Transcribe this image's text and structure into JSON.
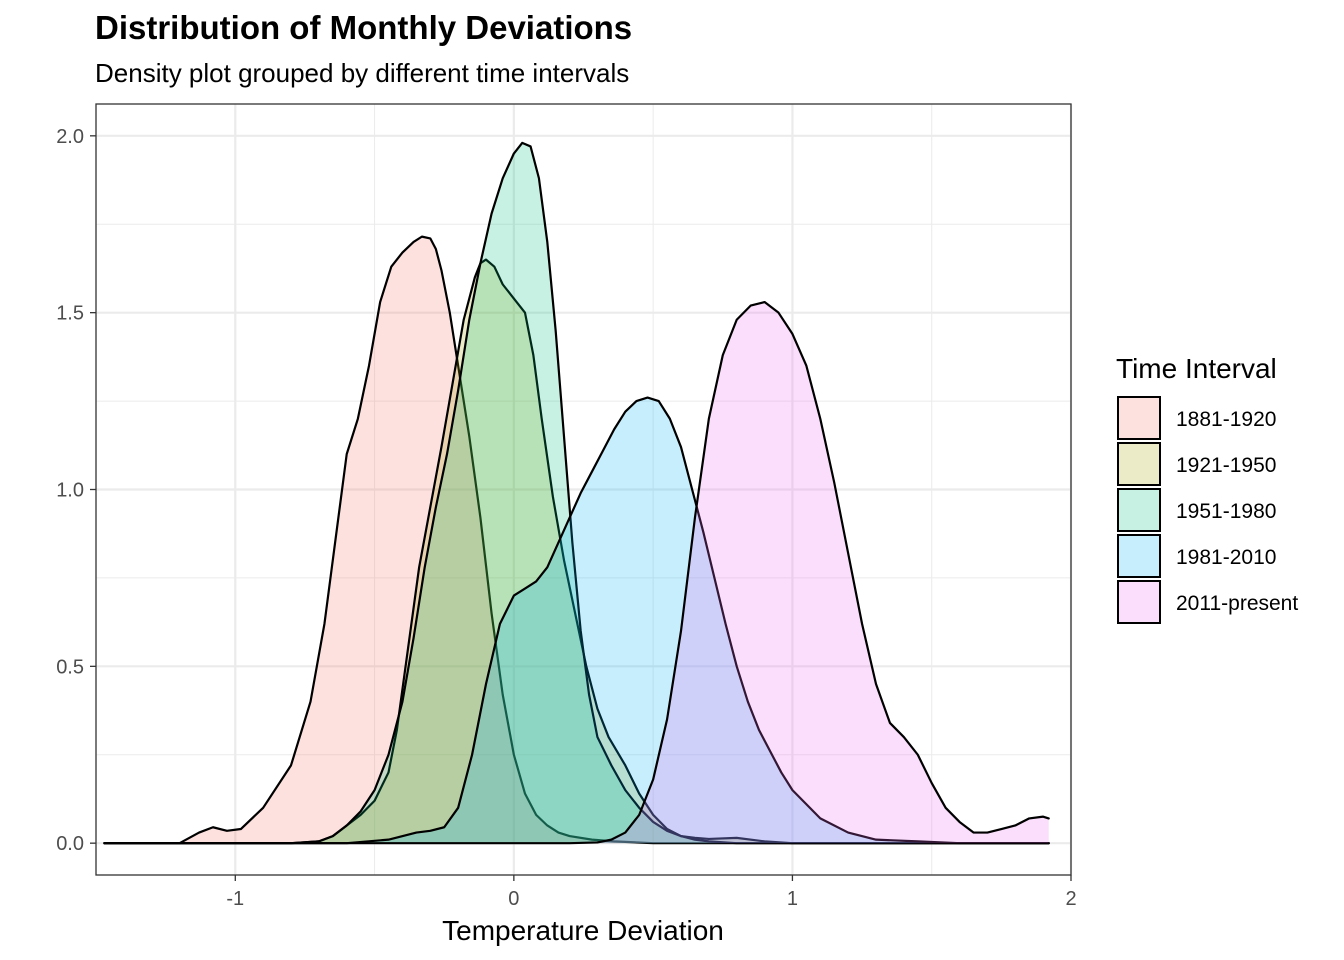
{
  "chart_data": {
    "type": "area",
    "title": "Distribution of Monthly Deviations",
    "subtitle": "Density plot grouped by different time intervals",
    "xlabel": "Temperature Deviation",
    "ylabel": "",
    "xlim": [
      -1.5,
      2.0
    ],
    "ylim": [
      -0.09,
      2.09
    ],
    "x_ticks": [
      -1,
      0,
      1,
      2
    ],
    "x_tick_labels": [
      "-1",
      "0",
      "1",
      "2"
    ],
    "y_ticks": [
      0.0,
      0.5,
      1.0,
      1.5,
      2.0
    ],
    "y_tick_labels": [
      "0.0",
      "0.5",
      "1.0",
      "1.5",
      "2.0"
    ],
    "grid": true,
    "legend": {
      "title": "Time Interval",
      "position": "right"
    },
    "series": [
      {
        "name": "1881-1920",
        "color": "#F8766D",
        "x": [
          -1.47,
          -1.3,
          -1.2,
          -1.13,
          -1.08,
          -1.03,
          -0.98,
          -0.9,
          -0.8,
          -0.73,
          -0.68,
          -0.63,
          -0.6,
          -0.56,
          -0.52,
          -0.48,
          -0.44,
          -0.4,
          -0.36,
          -0.33,
          -0.3,
          -0.28,
          -0.26,
          -0.23,
          -0.2,
          -0.16,
          -0.12,
          -0.08,
          -0.04,
          0.0,
          0.04,
          0.08,
          0.12,
          0.16,
          0.2,
          0.28,
          0.36,
          0.5,
          0.7,
          1.0,
          1.92
        ],
        "y": [
          0.0,
          0.0,
          0.0,
          0.03,
          0.045,
          0.035,
          0.04,
          0.1,
          0.22,
          0.4,
          0.62,
          0.92,
          1.1,
          1.2,
          1.35,
          1.53,
          1.63,
          1.67,
          1.7,
          1.715,
          1.71,
          1.68,
          1.62,
          1.5,
          1.35,
          1.15,
          0.92,
          0.65,
          0.42,
          0.25,
          0.14,
          0.08,
          0.05,
          0.03,
          0.02,
          0.01,
          0.005,
          0.0,
          0.0,
          0.0,
          0.0
        ]
      },
      {
        "name": "1921-1950",
        "color": "#A3A500",
        "x": [
          -1.47,
          -1.0,
          -0.8,
          -0.7,
          -0.65,
          -0.6,
          -0.55,
          -0.5,
          -0.45,
          -0.42,
          -0.38,
          -0.34,
          -0.3,
          -0.26,
          -0.22,
          -0.18,
          -0.14,
          -0.12,
          -0.1,
          -0.07,
          -0.04,
          0.0,
          0.04,
          0.07,
          0.1,
          0.14,
          0.18,
          0.22,
          0.26,
          0.3,
          0.34,
          0.4,
          0.45,
          0.5,
          0.55,
          0.6,
          0.65,
          0.7,
          0.8,
          0.9,
          1.0,
          1.92
        ],
        "y": [
          0.0,
          0.0,
          0.0,
          0.005,
          0.02,
          0.05,
          0.08,
          0.12,
          0.2,
          0.32,
          0.55,
          0.78,
          0.95,
          1.12,
          1.3,
          1.48,
          1.6,
          1.64,
          1.65,
          1.63,
          1.58,
          1.54,
          1.5,
          1.38,
          1.2,
          0.98,
          0.8,
          0.65,
          0.5,
          0.38,
          0.3,
          0.22,
          0.14,
          0.08,
          0.04,
          0.02,
          0.015,
          0.012,
          0.015,
          0.005,
          0.0,
          0.0
        ]
      },
      {
        "name": "1951-1980",
        "color": "#00BF7D",
        "x": [
          -1.47,
          -1.0,
          -0.8,
          -0.7,
          -0.65,
          -0.6,
          -0.55,
          -0.5,
          -0.45,
          -0.4,
          -0.36,
          -0.32,
          -0.28,
          -0.24,
          -0.2,
          -0.16,
          -0.12,
          -0.08,
          -0.04,
          0.0,
          0.03,
          0.06,
          0.09,
          0.12,
          0.15,
          0.18,
          0.21,
          0.24,
          0.27,
          0.3,
          0.35,
          0.4,
          0.45,
          0.5,
          0.55,
          0.6,
          0.65,
          0.7,
          0.8,
          1.0,
          1.92
        ],
        "y": [
          0.0,
          0.0,
          0.0,
          0.005,
          0.02,
          0.05,
          0.09,
          0.15,
          0.25,
          0.4,
          0.58,
          0.78,
          0.95,
          1.1,
          1.28,
          1.48,
          1.64,
          1.78,
          1.88,
          1.95,
          1.98,
          1.97,
          1.88,
          1.7,
          1.45,
          1.15,
          0.85,
          0.6,
          0.42,
          0.3,
          0.22,
          0.15,
          0.1,
          0.06,
          0.035,
          0.02,
          0.01,
          0.005,
          0.0,
          0.0,
          0.0
        ]
      },
      {
        "name": "1981-2010",
        "color": "#00B0F6",
        "x": [
          -1.47,
          -0.8,
          -0.6,
          -0.45,
          -0.35,
          -0.3,
          -0.25,
          -0.2,
          -0.15,
          -0.1,
          -0.05,
          0.0,
          0.04,
          0.08,
          0.12,
          0.16,
          0.2,
          0.24,
          0.28,
          0.32,
          0.36,
          0.4,
          0.44,
          0.48,
          0.52,
          0.56,
          0.6,
          0.64,
          0.68,
          0.72,
          0.76,
          0.8,
          0.84,
          0.88,
          0.92,
          0.96,
          1.0,
          1.05,
          1.1,
          1.2,
          1.3,
          1.45,
          1.6,
          1.92
        ],
        "y": [
          0.0,
          0.0,
          0.0,
          0.01,
          0.03,
          0.035,
          0.045,
          0.1,
          0.25,
          0.45,
          0.62,
          0.7,
          0.72,
          0.74,
          0.78,
          0.85,
          0.92,
          0.99,
          1.05,
          1.11,
          1.17,
          1.22,
          1.25,
          1.26,
          1.25,
          1.2,
          1.12,
          1.0,
          0.88,
          0.75,
          0.62,
          0.5,
          0.4,
          0.32,
          0.26,
          0.2,
          0.15,
          0.11,
          0.07,
          0.03,
          0.01,
          0.005,
          0.0,
          0.0
        ]
      },
      {
        "name": "2011-present",
        "color": "#E76BF3",
        "x": [
          -1.47,
          0.0,
          0.2,
          0.3,
          0.35,
          0.4,
          0.45,
          0.5,
          0.55,
          0.6,
          0.65,
          0.7,
          0.75,
          0.8,
          0.85,
          0.9,
          0.95,
          1.0,
          1.05,
          1.1,
          1.15,
          1.2,
          1.25,
          1.3,
          1.35,
          1.4,
          1.45,
          1.5,
          1.55,
          1.6,
          1.65,
          1.7,
          1.75,
          1.8,
          1.85,
          1.9,
          1.92
        ],
        "y": [
          0.0,
          0.0,
          0.0,
          0.002,
          0.01,
          0.03,
          0.08,
          0.18,
          0.35,
          0.6,
          0.92,
          1.2,
          1.38,
          1.48,
          1.52,
          1.53,
          1.5,
          1.44,
          1.35,
          1.2,
          1.02,
          0.82,
          0.62,
          0.45,
          0.34,
          0.3,
          0.25,
          0.17,
          0.1,
          0.06,
          0.03,
          0.03,
          0.04,
          0.05,
          0.07,
          0.075,
          0.07
        ]
      }
    ]
  }
}
